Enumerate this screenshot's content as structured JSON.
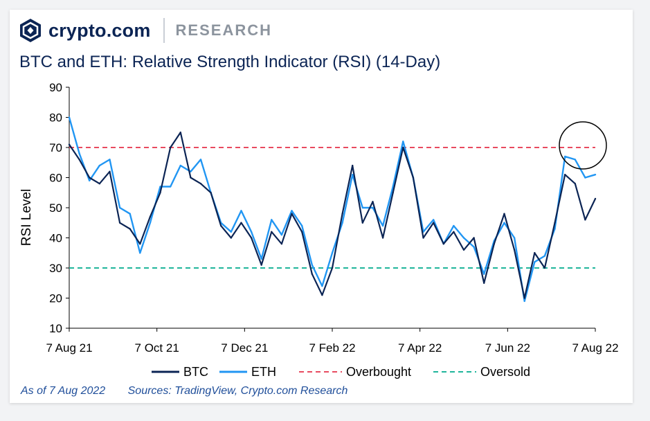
{
  "header": {
    "brand": "crypto.com",
    "section": "RESEARCH"
  },
  "chart_data": {
    "type": "line",
    "title": "BTC and ETH: Relative Strength Indicator (RSI) (14-Day)",
    "ylabel": "RSI Level",
    "xlabel": "",
    "ylim": [
      10,
      90
    ],
    "yticks": [
      10,
      20,
      30,
      40,
      50,
      60,
      70,
      80,
      90
    ],
    "x_tick_labels": [
      "7 Aug 21",
      "7 Oct 21",
      "7 Dec 21",
      "7 Feb 22",
      "7 Apr 22",
      "7 Jun 22",
      "7 Aug 22"
    ],
    "x_unit": "weeks since 7 Aug 21",
    "x_range": [
      0,
      52
    ],
    "x": [
      0,
      1,
      2,
      3,
      4,
      5,
      6,
      7,
      8,
      9,
      10,
      11,
      12,
      13,
      14,
      15,
      16,
      17,
      18,
      19,
      20,
      21,
      22,
      23,
      24,
      25,
      26,
      27,
      28,
      29,
      30,
      31,
      32,
      33,
      34,
      35,
      36,
      37,
      38,
      39,
      40,
      41,
      42,
      43,
      44,
      45,
      46,
      47,
      48,
      49,
      50,
      51,
      52
    ],
    "series": [
      {
        "name": "BTC",
        "color": "#0b2454",
        "values": [
          71,
          66,
          60,
          58,
          62,
          45,
          43,
          38,
          47,
          55,
          70,
          75,
          60,
          58,
          55,
          44,
          40,
          45,
          40,
          31,
          42,
          38,
          48,
          42,
          28,
          21,
          30,
          48,
          64,
          45,
          52,
          40,
          55,
          70,
          60,
          40,
          45,
          38,
          42,
          36,
          40,
          25,
          38,
          48,
          36,
          20,
          35,
          30,
          45,
          61,
          58,
          46,
          53
        ]
      },
      {
        "name": "ETH",
        "color": "#2196f3",
        "values": [
          80,
          68,
          59,
          64,
          66,
          50,
          48,
          35,
          45,
          57,
          57,
          64,
          62,
          66,
          55,
          45,
          42,
          49,
          42,
          33,
          46,
          41,
          49,
          44,
          31,
          24,
          35,
          45,
          61,
          50,
          50,
          44,
          57,
          72,
          60,
          42,
          46,
          38,
          44,
          40,
          37,
          28,
          39,
          45,
          40,
          19,
          32,
          34,
          43,
          67,
          66,
          60,
          61
        ]
      },
      {
        "name": "Overbought",
        "color": "#e84a5f",
        "style": "dashed",
        "level": 70
      },
      {
        "name": "Oversold",
        "color": "#1fb59b",
        "style": "dashed",
        "level": 30
      }
    ],
    "legend": [
      "BTC",
      "ETH",
      "Overbought",
      "Oversold"
    ],
    "legend_position": "bottom",
    "annotation": "circle highlighting latest ETH/BTC RSI values near the overbought line"
  },
  "footer": {
    "as_of": "As of 7 Aug 2022",
    "sources": "Sources: TradingView, Crypto.com Research"
  }
}
